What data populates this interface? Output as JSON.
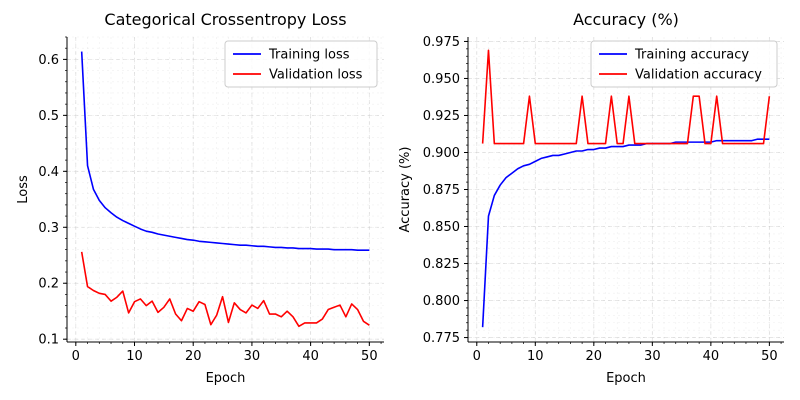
{
  "chart_data": [
    {
      "type": "line",
      "title": "Categorical Crossentropy Loss",
      "xlabel": "Epoch",
      "ylabel": "Loss",
      "xlim": [
        -1.5,
        52.5
      ],
      "ylim": [
        0.095,
        0.64
      ],
      "xticks": [
        0,
        10,
        20,
        30,
        40,
        50
      ],
      "yticks": [
        0.1,
        0.2,
        0.3,
        0.4,
        0.5,
        0.6
      ],
      "ytick_labels": [
        "0.1",
        "0.2",
        "0.3",
        "0.4",
        "0.5",
        "0.6"
      ],
      "grid": true,
      "legend": "upper right",
      "x": [
        1,
        2,
        3,
        4,
        5,
        6,
        7,
        8,
        9,
        10,
        11,
        12,
        13,
        14,
        15,
        16,
        17,
        18,
        19,
        20,
        21,
        22,
        23,
        24,
        25,
        26,
        27,
        28,
        29,
        30,
        31,
        32,
        33,
        34,
        35,
        36,
        37,
        38,
        39,
        40,
        41,
        42,
        43,
        44,
        45,
        46,
        47,
        48,
        49,
        50
      ],
      "series": [
        {
          "name": "Training loss",
          "color": "#0000ff",
          "values": [
            0.614,
            0.41,
            0.368,
            0.348,
            0.335,
            0.326,
            0.318,
            0.312,
            0.307,
            0.302,
            0.297,
            0.293,
            0.291,
            0.288,
            0.286,
            0.284,
            0.282,
            0.28,
            0.278,
            0.277,
            0.275,
            0.274,
            0.273,
            0.272,
            0.271,
            0.27,
            0.269,
            0.268,
            0.268,
            0.267,
            0.266,
            0.266,
            0.265,
            0.264,
            0.264,
            0.263,
            0.263,
            0.262,
            0.262,
            0.262,
            0.261,
            0.261,
            0.261,
            0.26,
            0.26,
            0.26,
            0.26,
            0.259,
            0.259,
            0.259
          ]
        },
        {
          "name": "Validation loss",
          "color": "#ff0000",
          "values": [
            0.256,
            0.194,
            0.187,
            0.182,
            0.18,
            0.168,
            0.175,
            0.186,
            0.147,
            0.167,
            0.172,
            0.16,
            0.168,
            0.148,
            0.157,
            0.172,
            0.145,
            0.133,
            0.155,
            0.15,
            0.167,
            0.162,
            0.126,
            0.143,
            0.176,
            0.13,
            0.165,
            0.153,
            0.147,
            0.161,
            0.155,
            0.169,
            0.145,
            0.145,
            0.14,
            0.15,
            0.14,
            0.123,
            0.129,
            0.129,
            0.129,
            0.136,
            0.153,
            0.157,
            0.161,
            0.14,
            0.163,
            0.153,
            0.132,
            0.125
          ]
        }
      ]
    },
    {
      "type": "line",
      "title": "Accuracy (%)",
      "xlabel": "Epoch",
      "ylabel": "Accuracy (%)",
      "xlim": [
        -1.5,
        52.5
      ],
      "ylim": [
        0.772,
        0.978
      ],
      "xticks": [
        0,
        10,
        20,
        30,
        40,
        50
      ],
      "yticks": [
        0.775,
        0.8,
        0.825,
        0.85,
        0.875,
        0.9,
        0.925,
        0.95,
        0.975
      ],
      "ytick_labels": [
        "0.775",
        "0.800",
        "0.825",
        "0.850",
        "0.875",
        "0.900",
        "0.925",
        "0.950",
        "0.975"
      ],
      "grid": true,
      "legend": "upper right",
      "x": [
        1,
        2,
        3,
        4,
        5,
        6,
        7,
        8,
        9,
        10,
        11,
        12,
        13,
        14,
        15,
        16,
        17,
        18,
        19,
        20,
        21,
        22,
        23,
        24,
        25,
        26,
        27,
        28,
        29,
        30,
        31,
        32,
        33,
        34,
        35,
        36,
        37,
        38,
        39,
        40,
        41,
        42,
        43,
        44,
        45,
        46,
        47,
        48,
        49,
        50
      ],
      "series": [
        {
          "name": "Training accuracy",
          "color": "#0000ff",
          "values": [
            0.782,
            0.857,
            0.871,
            0.878,
            0.883,
            0.886,
            0.889,
            0.891,
            0.892,
            0.894,
            0.896,
            0.897,
            0.898,
            0.898,
            0.899,
            0.9,
            0.901,
            0.901,
            0.902,
            0.902,
            0.903,
            0.903,
            0.904,
            0.904,
            0.904,
            0.905,
            0.905,
            0.905,
            0.906,
            0.906,
            0.906,
            0.906,
            0.906,
            0.907,
            0.907,
            0.907,
            0.907,
            0.907,
            0.907,
            0.907,
            0.908,
            0.908,
            0.908,
            0.908,
            0.908,
            0.908,
            0.908,
            0.909,
            0.909,
            0.909
          ]
        },
        {
          "name": "Validation accuracy",
          "color": "#ff0000",
          "values": [
            0.906,
            0.969,
            0.906,
            0.906,
            0.906,
            0.906,
            0.906,
            0.906,
            0.938,
            0.906,
            0.906,
            0.906,
            0.906,
            0.906,
            0.906,
            0.906,
            0.906,
            0.938,
            0.906,
            0.906,
            0.906,
            0.906,
            0.938,
            0.906,
            0.906,
            0.938,
            0.906,
            0.906,
            0.906,
            0.906,
            0.906,
            0.906,
            0.906,
            0.906,
            0.906,
            0.906,
            0.938,
            0.938,
            0.906,
            0.906,
            0.938,
            0.906,
            0.906,
            0.906,
            0.906,
            0.906,
            0.906,
            0.906,
            0.906,
            0.938
          ]
        }
      ]
    }
  ]
}
